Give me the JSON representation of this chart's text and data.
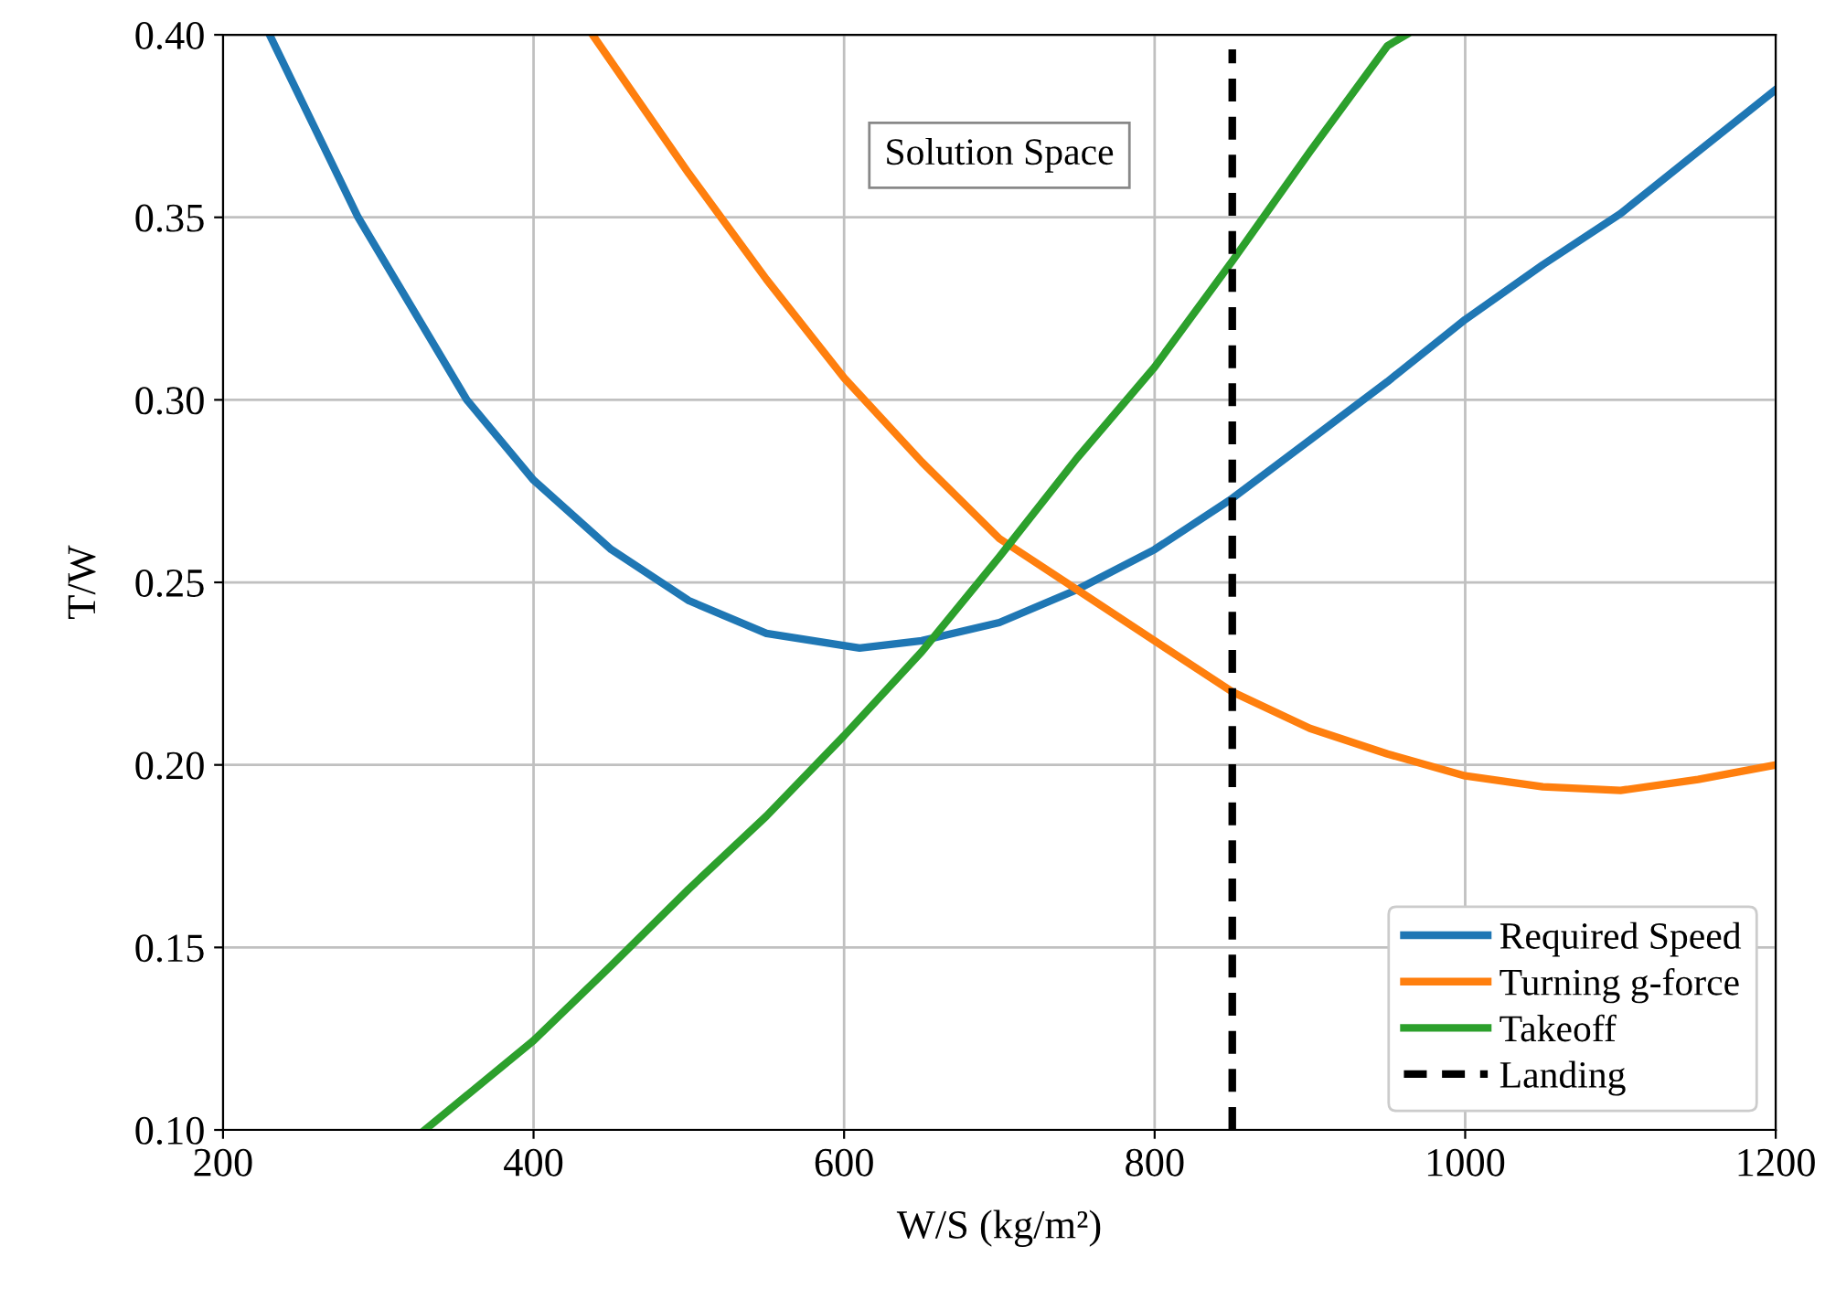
{
  "chart_data": {
    "type": "line",
    "xlabel": "W/S (kg/m²)",
    "ylabel": "T/W",
    "xlim": [
      200,
      1200
    ],
    "xticks": [
      200,
      400,
      600,
      800,
      1000,
      1200
    ],
    "ylim": [
      0.1,
      0.4
    ],
    "yticks": [
      {
        "value": 0.1,
        "label": "0.10"
      },
      {
        "value": 0.15,
        "label": "0.15"
      },
      {
        "value": 0.2,
        "label": "0.20"
      },
      {
        "value": 0.25,
        "label": "0.25"
      },
      {
        "value": 0.3,
        "label": "0.30"
      },
      {
        "value": 0.35,
        "label": "0.35"
      },
      {
        "value": 0.4,
        "label": "0.40"
      }
    ],
    "grid": true,
    "legend": "bottom right",
    "annotations": [
      "Solution Space"
    ],
    "series": [
      {
        "name": "Required Speed",
        "color": "#1f77b4",
        "x": [
          230,
          287,
          357,
          400,
          450,
          500,
          550,
          610,
          650,
          700,
          750,
          800,
          850,
          900,
          950,
          1000,
          1050,
          1100,
          1150,
          1200
        ],
        "values": [
          0.4,
          0.35,
          0.3,
          0.278,
          0.259,
          0.245,
          0.236,
          0.232,
          0.234,
          0.239,
          0.248,
          0.259,
          0.273,
          0.289,
          0.305,
          0.322,
          0.337,
          0.351,
          0.368,
          0.385
        ]
      },
      {
        "name": "Turning g-force",
        "color": "#ff7f0e",
        "x": [
          438,
          500,
          550,
          600,
          650,
          700,
          750,
          800,
          850,
          900,
          950,
          1000,
          1050,
          1100,
          1150,
          1200
        ],
        "values": [
          0.4,
          0.362,
          0.333,
          0.306,
          0.283,
          0.262,
          0.248,
          0.234,
          0.22,
          0.21,
          0.203,
          0.197,
          0.194,
          0.193,
          0.196,
          0.2
        ]
      },
      {
        "name": "Takeoff",
        "color": "#2ca02c",
        "x": [
          330,
          400,
          450,
          500,
          550,
          600,
          650,
          700,
          750,
          800,
          850,
          900,
          950,
          962
        ],
        "values": [
          0.1,
          0.1245,
          0.145,
          0.166,
          0.186,
          0.208,
          0.231,
          0.257,
          0.284,
          0.309,
          0.338,
          0.368,
          0.397,
          0.4
        ]
      },
      {
        "name": "Landing",
        "color": "#000000",
        "line_style": "dashed",
        "x": [
          850,
          850
        ],
        "values": [
          0.1,
          0.396
        ]
      }
    ]
  }
}
